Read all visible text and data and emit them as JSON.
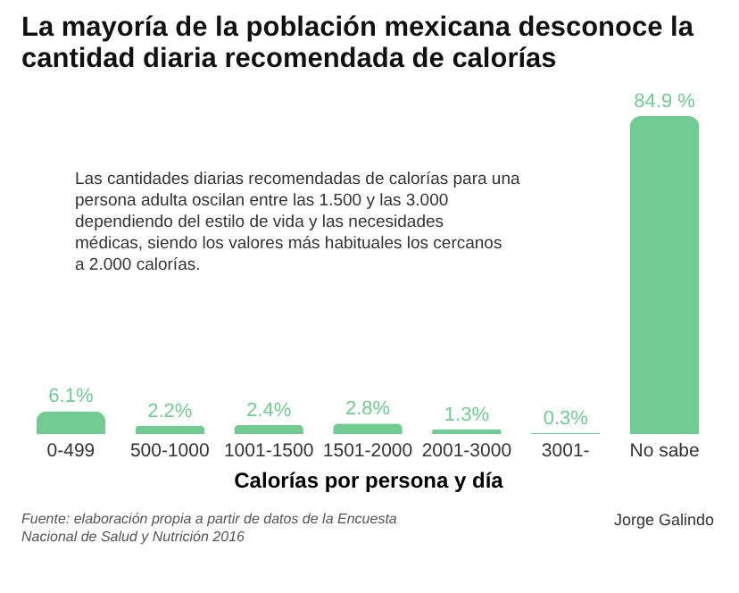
{
  "chart_data": {
    "type": "bar",
    "title": "La mayoría de la población mexicana desconoce la cantidad diaria recomendada de calorías",
    "xlabel": "Calorías por persona y día",
    "categories": [
      "0-499",
      "500-1000",
      "1001-1500",
      "1501-2000",
      "2001-3000",
      "3001-",
      "No sabe"
    ],
    "values": [
      6.1,
      2.2,
      2.4,
      2.8,
      1.3,
      0.3,
      84.9
    ],
    "value_labels": [
      "6.1%",
      "2.2%",
      "2.4%",
      "2.8%",
      "1.3%",
      "0.3%",
      "84.9 %"
    ],
    "color": "#72cb93",
    "tick_labels": "x",
    "annotations": [
      "Las cantidades diarias recomendadas de calorías para una persona adulta oscilan entre las 1.500 y las 3.000 dependiendo del estilo de vida y las necesidades médicas, siendo los valores más habituales los cercanos a 2.000 calorías.",
      "Fuente: elaboración propia a partir de datos de la Encuesta Nacional de Salud y Nutrición 2016",
      "Jorge Galindo"
    ]
  }
}
